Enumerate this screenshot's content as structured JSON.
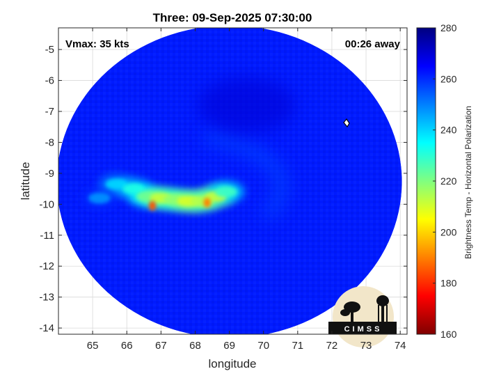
{
  "chart_data": {
    "type": "heatmap",
    "title": "Three: 09-Sep-2025 07:30:00",
    "xlabel": "longitude",
    "ylabel": "latitude",
    "xlim": [
      64.0,
      74.2
    ],
    "ylim": [
      -14.2,
      -4.3
    ],
    "x_ticks": [
      65,
      66,
      67,
      68,
      69,
      70,
      71,
      72,
      73,
      74
    ],
    "y_ticks": [
      -5,
      -6,
      -7,
      -8,
      -9,
      -10,
      -11,
      -12,
      -13,
      -14
    ],
    "grid": true,
    "swath": {
      "center_lon": 69.0,
      "center_lat": -9.27,
      "radius_deg": 5.05
    },
    "colorbar": {
      "label": "Brightness Temp - Horizontal Polarization",
      "range": [
        160,
        280
      ],
      "ticks": [
        160,
        180,
        200,
        220,
        240,
        260,
        280
      ],
      "colors": [
        "#800000",
        "#ff0000",
        "#ff8000",
        "#ffff00",
        "#80ff80",
        "#00ffff",
        "#0080ff",
        "#0000ff",
        "#000080"
      ]
    },
    "background_temp": 262,
    "features": [
      {
        "name": "rainband",
        "points": [
          [
            65.2,
            -9.8
          ],
          [
            65.7,
            -9.35
          ],
          [
            66.2,
            -9.5
          ],
          [
            66.6,
            -9.75
          ],
          [
            67.0,
            -9.8
          ],
          [
            67.4,
            -9.85
          ],
          [
            67.8,
            -9.9
          ],
          [
            68.2,
            -9.9
          ],
          [
            68.6,
            -9.75
          ],
          [
            68.9,
            -9.6
          ]
        ],
        "temps": [
          248,
          240,
          232,
          222,
          212,
          218,
          210,
          214,
          212,
          228
        ]
      },
      {
        "name": "core-min-1",
        "lon": 66.75,
        "lat": -10.05,
        "temp": 185
      },
      {
        "name": "core-min-2",
        "lon": 68.35,
        "lat": -9.95,
        "temp": 190
      },
      {
        "name": "eyewall-arc",
        "lon": 69.5,
        "lat": -9.0,
        "temp": 255
      },
      {
        "name": "warm-patch",
        "lon": 69.5,
        "lat": -6.8,
        "temp": 270
      }
    ],
    "annotations": {
      "vmax": "Vmax: 35 kts",
      "time_away": "00:26 away"
    }
  },
  "logo": {
    "text": "CIMSS"
  }
}
